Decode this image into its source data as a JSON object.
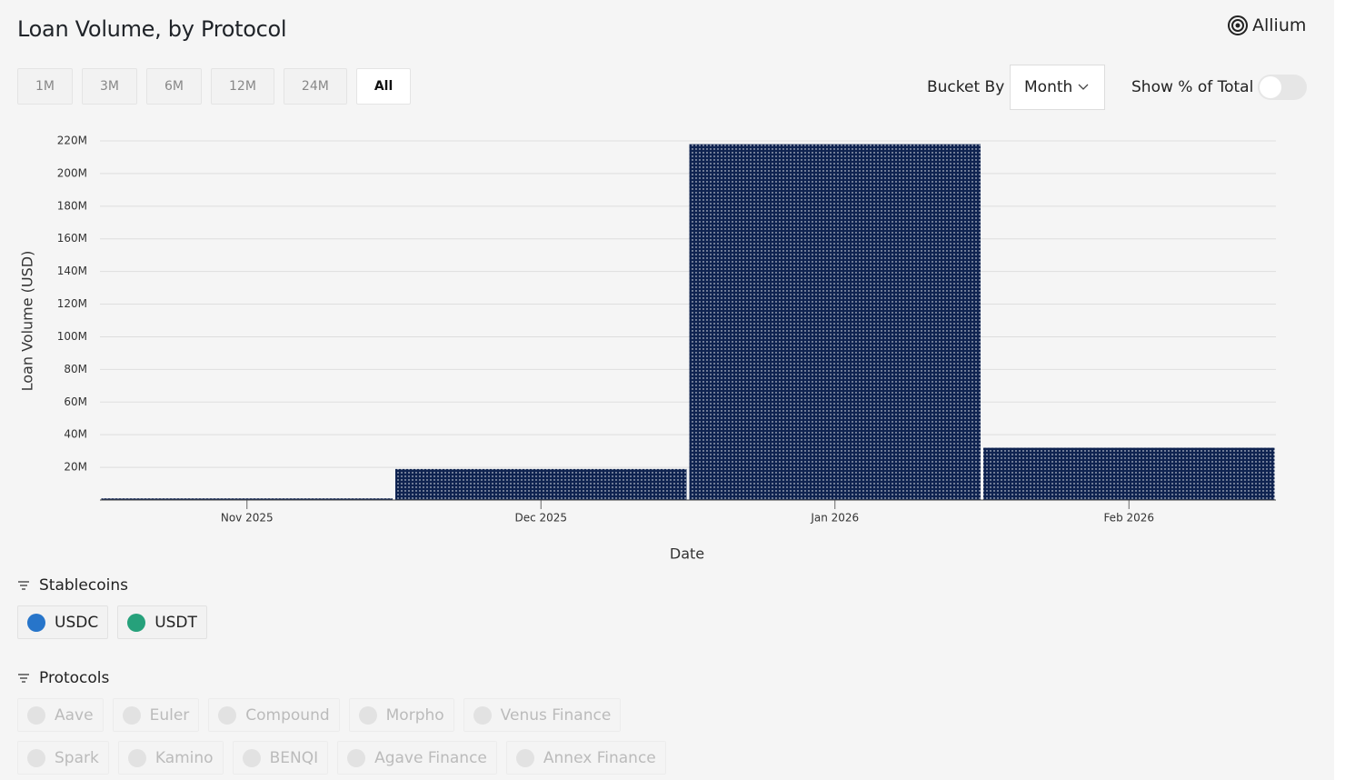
{
  "header": {
    "title": "Loan Volume, by Protocol",
    "brand": "Allium"
  },
  "controls": {
    "ranges": [
      "1M",
      "3M",
      "6M",
      "12M",
      "24M",
      "All"
    ],
    "bucket_label": "Bucket By",
    "bucket_value": "Month",
    "toggle_label": "Show % of Total"
  },
  "chart_data": {
    "type": "bar",
    "x_label": "Date",
    "y_label": "Loan Volume (USD)",
    "categories": [
      "Nov 2025",
      "Dec 2025",
      "Jan 2026",
      "Feb 2026"
    ],
    "values": [
      1000000,
      19000000,
      218000000,
      32000000
    ],
    "color": "#0f2350",
    "ylim": [
      0,
      220000000
    ],
    "yticks": [
      {
        "value": 20000000,
        "label": "20M"
      },
      {
        "value": 40000000,
        "label": "40M"
      },
      {
        "value": 60000000,
        "label": "60M"
      },
      {
        "value": 80000000,
        "label": "80M"
      },
      {
        "value": 100000000,
        "label": "100M"
      },
      {
        "value": 120000000,
        "label": "120M"
      },
      {
        "value": 140000000,
        "label": "140M"
      },
      {
        "value": 160000000,
        "label": "160M"
      },
      {
        "value": 180000000,
        "label": "180M"
      },
      {
        "value": 200000000,
        "label": "200M"
      },
      {
        "value": 220000000,
        "label": "220M"
      }
    ],
    "grid": true
  },
  "filters": {
    "stablecoins": {
      "title": "Stablecoins",
      "items": [
        "USDC",
        "USDT"
      ]
    },
    "protocols": {
      "title": "Protocols",
      "rows": [
        [
          "Aave",
          "Euler",
          "Compound",
          "Morpho",
          "Venus Finance"
        ],
        [
          "Spark",
          "Kamino",
          "BENQI",
          "Agave Finance",
          "Annex Finance"
        ]
      ]
    }
  }
}
